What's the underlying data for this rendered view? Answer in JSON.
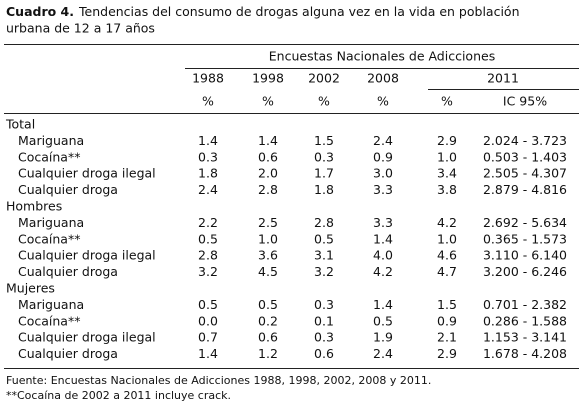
{
  "header": {
    "label": "Cuadro 4.",
    "title_lines": [
      "Tendencias del consumo de drogas alguna vez en la vida en población",
      "urbana de 12 a 17 años"
    ]
  },
  "table": {
    "super_header": "Encuestas Nacionales de Adicciones",
    "years": [
      "1988",
      "1998",
      "2002",
      "2008",
      "2011"
    ],
    "units": [
      "%",
      "%",
      "%",
      "%",
      "%",
      "IC 95%"
    ],
    "groups": [
      {
        "name": "Total",
        "rows": [
          {
            "label": "Mariguana",
            "values": [
              "1.4",
              "1.4",
              "1.5",
              "2.4",
              "2.9",
              "2.024 - 3.723"
            ]
          },
          {
            "label": "Cocaína**",
            "values": [
              "0.3",
              "0.6",
              "0.3",
              "0.9",
              "1.0",
              "0.503 - 1.403"
            ]
          },
          {
            "label": "Cualquier droga ilegal",
            "values": [
              "1.8",
              "2.0",
              "1.7",
              "3.0",
              "3.4",
              "2.505 - 4.307"
            ]
          },
          {
            "label": "Cualquier droga",
            "values": [
              "2.4",
              "2.8",
              "1.8",
              "3.3",
              "3.8",
              "2.879 - 4.816"
            ]
          }
        ]
      },
      {
        "name": "Hombres",
        "rows": [
          {
            "label": "Mariguana",
            "values": [
              "2.2",
              "2.5",
              "2.8",
              "3.3",
              "4.2",
              "2.692 - 5.634"
            ]
          },
          {
            "label": "Cocaína**",
            "values": [
              "0.5",
              "1.0",
              "0.5",
              "1.4",
              "1.0",
              "0.365 - 1.573"
            ]
          },
          {
            "label": "Cualquier droga ilegal",
            "values": [
              "2.8",
              "3.6",
              "3.1",
              "4.0",
              "4.6",
              "3.110 - 6.140"
            ]
          },
          {
            "label": "Cualquier droga",
            "values": [
              "3.2",
              "4.5",
              "3.2",
              "4.2",
              "4.7",
              "3.200 - 6.246"
            ]
          }
        ]
      },
      {
        "name": "Mujeres",
        "rows": [
          {
            "label": "Mariguana",
            "values": [
              "0.5",
              "0.5",
              "0.3",
              "1.4",
              "1.5",
              "0.701 - 2.382"
            ]
          },
          {
            "label": "Cocaína**",
            "values": [
              "0.0",
              "0.2",
              "0.1",
              "0.5",
              "0.9",
              "0.286 - 1.588"
            ]
          },
          {
            "label": "Cualquier droga ilegal",
            "values": [
              "0.7",
              "0.6",
              "0.3",
              "1.9",
              "2.1",
              "1.153 - 3.141"
            ]
          },
          {
            "label": "Cualquier droga",
            "values": [
              "1.4",
              "1.2",
              "0.6",
              "2.4",
              "2.9",
              "1.678 - 4.208"
            ]
          }
        ]
      }
    ]
  },
  "footnotes": [
    "Fuente: Encuestas Nacionales de Adicciones 1988, 1998, 2002, 2008 y 2011.",
    "**Cocaína de 2002 a 2011 incluye crack."
  ]
}
